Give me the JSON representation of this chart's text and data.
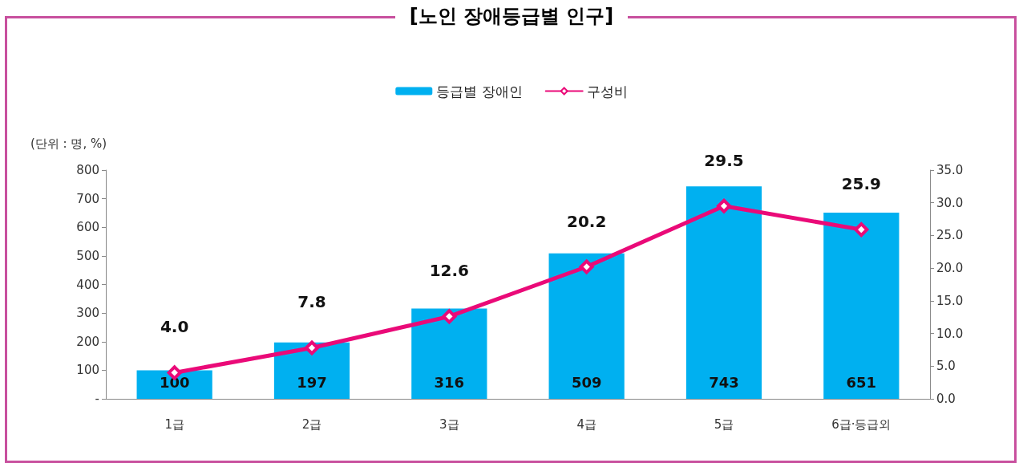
{
  "chart_data": {
    "type": "bar",
    "title": "[노인 장애등급별 인구]",
    "annotations": [
      "(단위 : 명, %)"
    ],
    "categories": [
      "1급",
      "2급",
      "3급",
      "4급",
      "5급",
      "6급·등급외"
    ],
    "series": [
      {
        "name": "등급별 장애인",
        "color": "#00b0f0",
        "values": [
          100,
          197,
          316,
          509,
          743,
          651
        ],
        "value_labels": [
          "100",
          "197",
          "316",
          "509",
          "743",
          "651"
        ]
      },
      {
        "name": "구성비",
        "type": "line",
        "axis": "y2",
        "color": "#ea0a78",
        "marker": "diamond",
        "line_style": "solid",
        "values": [
          4.0,
          7.8,
          12.6,
          20.2,
          29.5,
          25.9
        ],
        "value_labels": [
          "4.0",
          "7.8",
          "12.6",
          "20.2",
          "29.5",
          "25.9"
        ]
      }
    ],
    "ylim": [
      0,
      800
    ],
    "yticks": [
      {
        "value": 0,
        "label": "-"
      },
      100,
      200,
      300,
      400,
      500,
      600,
      700,
      800
    ],
    "y2lim": [
      0,
      35
    ],
    "y2ticks": [
      {
        "value": 0,
        "label": "0.0"
      },
      {
        "value": 5,
        "label": "5.0"
      },
      {
        "value": 10,
        "label": "10.0"
      },
      {
        "value": 15,
        "label": "15.0"
      },
      {
        "value": 20,
        "label": "20.0"
      },
      {
        "value": 25,
        "label": "25.0"
      },
      {
        "value": 30,
        "label": "30.0"
      },
      {
        "value": 35,
        "label": "35.0"
      }
    ],
    "legend": "top",
    "grid": false
  }
}
